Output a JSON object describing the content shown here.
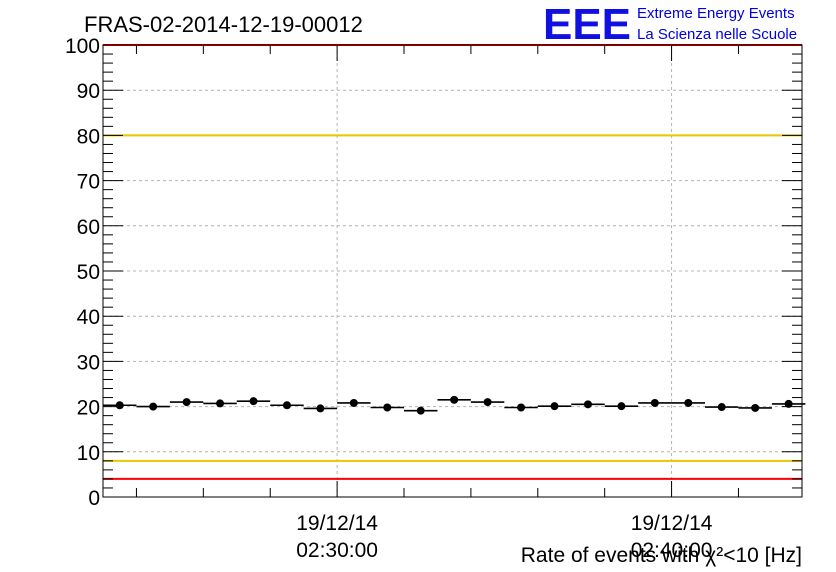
{
  "chart_data": {
    "type": "scatter",
    "title": "FRAS-02-2014-12-19-00012",
    "xlabel": "",
    "ylabel": "Rate of events with χ²<10 [Hz]",
    "ylim": [
      0,
      100
    ],
    "yticks": [
      "0",
      "10",
      "20",
      "30",
      "40",
      "50",
      "60",
      "70",
      "80",
      "90",
      "100"
    ],
    "xticks": [
      {
        "date": "19/12/14",
        "time": "02:30:00",
        "x_min": 30
      },
      {
        "date": "19/12/14",
        "time": "02:40:00",
        "x_min": 40
      }
    ],
    "xlim_minutes": [
      23,
      43.9
    ],
    "bin_width_minutes": 1,
    "series": [
      {
        "x_minutes": [
          23.5,
          24.5,
          25.5,
          26.5,
          27.5,
          28.5,
          29.5,
          30.5,
          31.5,
          32.5,
          33.5,
          34.5,
          35.5,
          36.5,
          37.5,
          38.5,
          39.5,
          40.5,
          41.5,
          42.5,
          43.5
        ],
        "values": [
          20.3,
          20.0,
          21.0,
          20.7,
          21.2,
          20.3,
          19.6,
          20.8,
          19.8,
          19.1,
          21.5,
          21.0,
          19.8,
          20.1,
          20.5,
          20.1,
          20.8,
          20.8,
          19.9,
          19.7,
          20.6
        ]
      }
    ],
    "reference_lines": [
      {
        "value": 100,
        "color": "#ff0000"
      },
      {
        "value": 80,
        "color": "#e8c800"
      },
      {
        "value": 8,
        "color": "#e8c800"
      },
      {
        "value": 4,
        "color": "#ff0000"
      }
    ],
    "grid": true
  },
  "logo": {
    "mark": "EEE",
    "line1": "Extreme Energy Events",
    "line2": "La Scienza nelle Scuole",
    "color": "#0000e0"
  }
}
